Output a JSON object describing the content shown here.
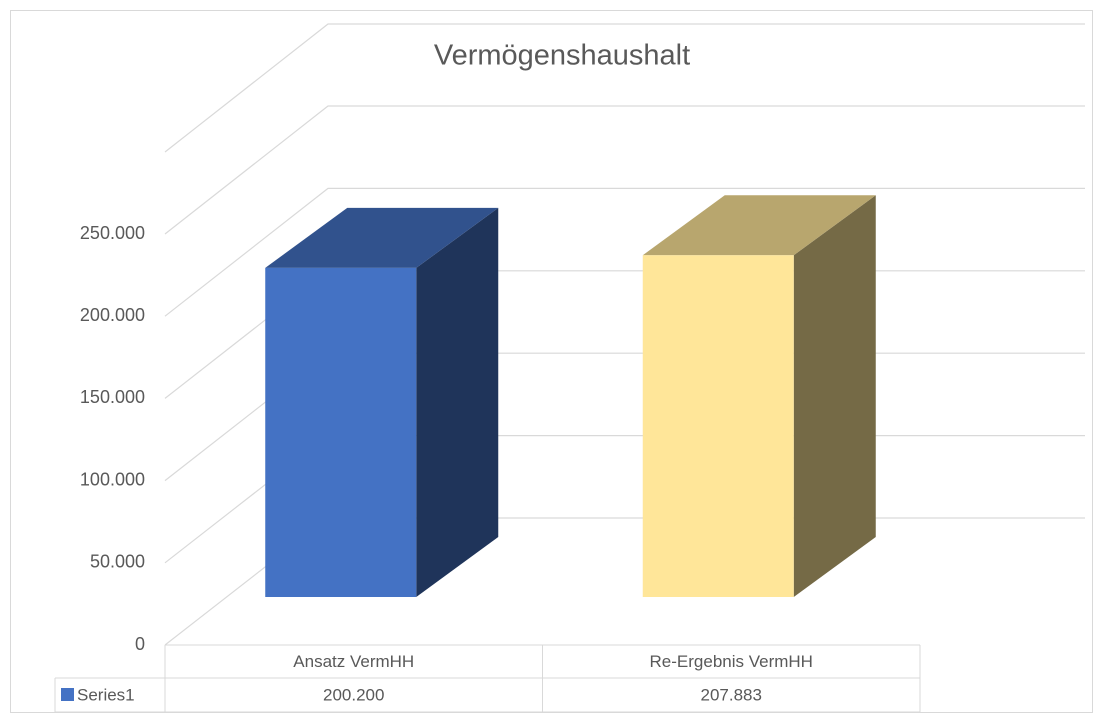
{
  "chart_data": {
    "type": "bar3d",
    "title": "Vermögenshaushalt",
    "categories": [
      "Ansatz VermHH",
      "Re-Ergebnis VermHH"
    ],
    "series": [
      {
        "name": "Series1",
        "colors": [
          "#4472c4",
          "#ffe699"
        ],
        "values": [
          200200,
          207883
        ],
        "value_labels": [
          "200.200",
          "207.883"
        ]
      }
    ],
    "ylim": [
      0,
      250000
    ],
    "yticks": [
      0,
      {
        "value": 50000,
        "label": "50.000"
      },
      {
        "value": 100000,
        "label": "100.000"
      },
      {
        "value": 150000,
        "label": "150.000"
      },
      {
        "value": 200000,
        "label": "200.000"
      },
      {
        "value": 250000,
        "label": "250.000"
      }
    ],
    "grid": true,
    "data_table": true
  }
}
